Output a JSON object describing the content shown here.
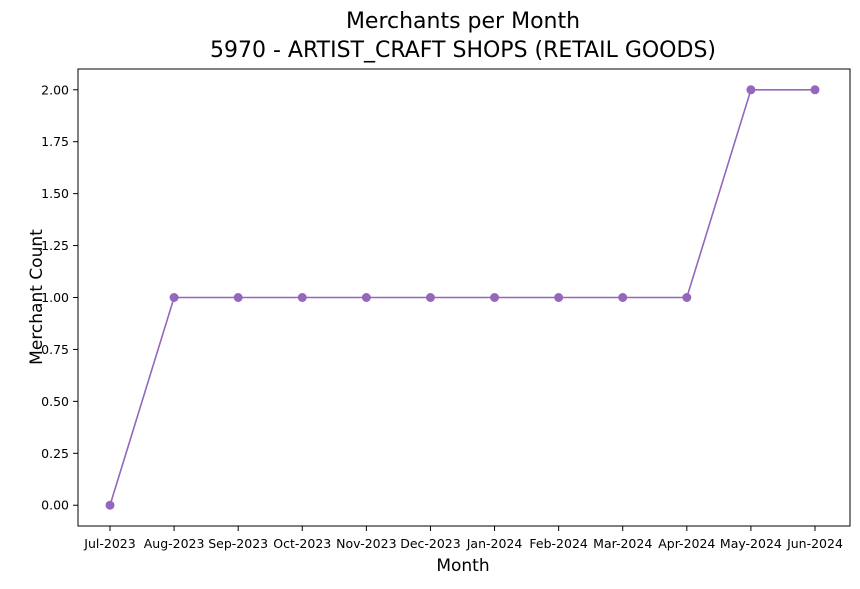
{
  "chart_data": {
    "type": "line",
    "title": "Merchants per Month",
    "subtitle": "5970 - ARTIST_CRAFT SHOPS (RETAIL GOODS)",
    "xlabel": "Month",
    "ylabel": "Merchant Count",
    "categories": [
      "Jul-2023",
      "Aug-2023",
      "Sep-2023",
      "Oct-2023",
      "Nov-2023",
      "Dec-2023",
      "Jan-2024",
      "Feb-2024",
      "Mar-2024",
      "Apr-2024",
      "May-2024",
      "Jun-2024"
    ],
    "series": [
      {
        "values": [
          0,
          1,
          1,
          1,
          1,
          1,
          1,
          1,
          1,
          1,
          2,
          2
        ],
        "color": "#9467bd",
        "marker": "circle"
      }
    ],
    "ylim": [
      -0.1,
      2.1
    ],
    "yticks": [
      "0.00",
      "0.25",
      "0.50",
      "0.75",
      "1.00",
      "1.25",
      "1.50",
      "1.75",
      "2.00"
    ],
    "grid": false,
    "legend": "none"
  }
}
